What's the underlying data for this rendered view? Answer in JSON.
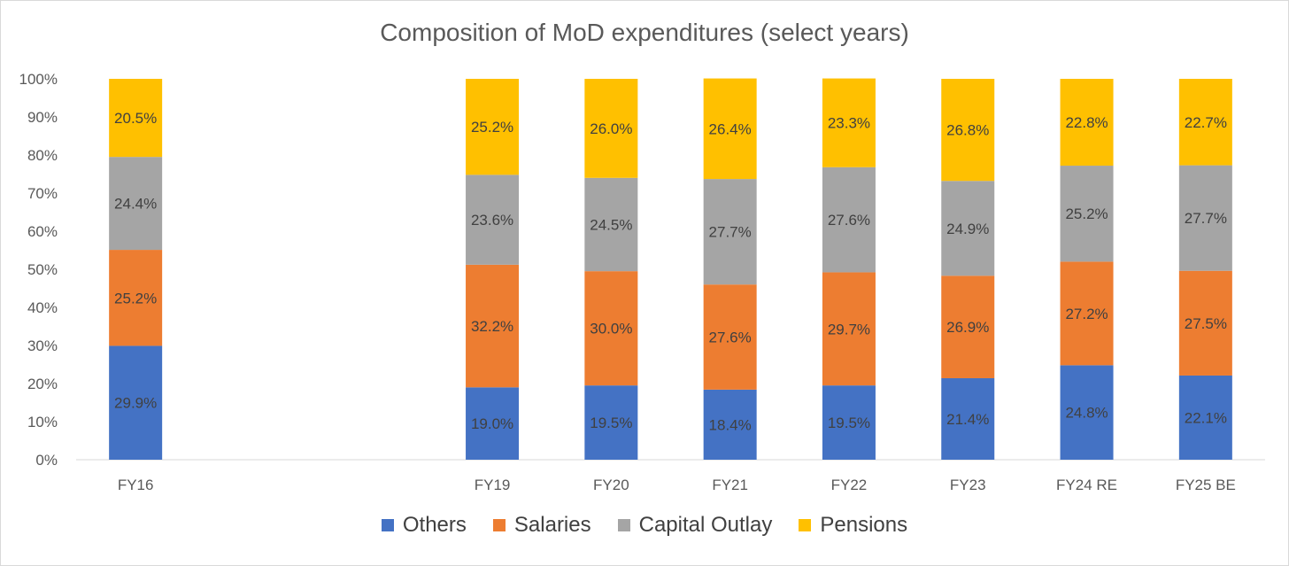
{
  "chart_data": {
    "type": "bar",
    "stacked": true,
    "title": "Composition of MoD expenditures (select years)",
    "xlabel": "",
    "ylabel": "",
    "ylim": [
      0,
      100
    ],
    "yticks": [
      "0%",
      "10%",
      "20%",
      "30%",
      "40%",
      "50%",
      "60%",
      "70%",
      "80%",
      "90%",
      "100%"
    ],
    "categories": [
      "FY16",
      "",
      "",
      "FY19",
      "FY20",
      "FY21",
      "FY22",
      "FY23",
      "FY24 RE",
      "FY25 BE"
    ],
    "series": [
      {
        "name": "Others",
        "color": "#4472c4",
        "values": [
          29.9,
          null,
          null,
          19.0,
          19.5,
          18.4,
          19.5,
          21.4,
          24.8,
          22.1
        ],
        "labels": [
          "29.9%",
          "",
          "",
          "19.0%",
          "19.5%",
          "18.4%",
          "19.5%",
          "21.4%",
          "24.8%",
          "22.1%"
        ]
      },
      {
        "name": "Salaries",
        "color": "#ed7d31",
        "values": [
          25.2,
          null,
          null,
          32.2,
          30.0,
          27.6,
          29.7,
          26.9,
          27.2,
          27.5
        ],
        "labels": [
          "25.2%",
          "",
          "",
          "32.2%",
          "30.0%",
          "27.6%",
          "29.7%",
          "26.9%",
          "27.2%",
          "27.5%"
        ]
      },
      {
        "name": "Capital Outlay",
        "color": "#a5a5a5",
        "values": [
          24.4,
          null,
          null,
          23.6,
          24.5,
          27.7,
          27.6,
          24.9,
          25.2,
          27.7
        ],
        "labels": [
          "24.4%",
          "",
          "",
          "23.6%",
          "24.5%",
          "27.7%",
          "27.6%",
          "24.9%",
          "25.2%",
          "27.7%"
        ]
      },
      {
        "name": "Pensions",
        "color": "#ffc000",
        "values": [
          20.5,
          null,
          null,
          25.2,
          26.0,
          26.4,
          23.3,
          26.8,
          22.8,
          22.7
        ],
        "labels": [
          "20.5%",
          "",
          "",
          "25.2%",
          "26.0%",
          "26.4%",
          "23.3%",
          "26.8%",
          "22.8%",
          "22.7%"
        ]
      }
    ],
    "grid": false,
    "legend": "bottom"
  }
}
